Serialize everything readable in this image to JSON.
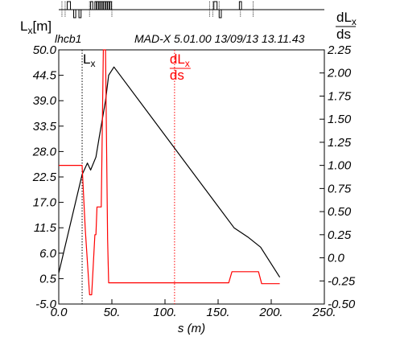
{
  "chart_data": {
    "type": "line",
    "header": {
      "left_text": "lhcb1",
      "right_text": "MAD-X 5.01.00   13/09/13 13.11.43"
    },
    "xlabel": "s (m)",
    "xlim": [
      0,
      250
    ],
    "x_ticks": [
      "0.0",
      "50.",
      "100.",
      "150.",
      "200.",
      "250."
    ],
    "y_left": {
      "label_main": "L",
      "label_sub": "x",
      "label_unit": "[m]",
      "ylim": [
        -5,
        50
      ],
      "ticks": [
        "-5.0",
        "0.5",
        "6.0",
        "11.5",
        "17.0",
        "22.5",
        "28.0",
        "33.5",
        "39.0",
        "44.5",
        "50.0"
      ]
    },
    "y_right": {
      "label_num": "dL",
      "label_sub": "x",
      "label_den": "ds",
      "ylim": [
        -0.5,
        2.25
      ],
      "ticks": [
        "-0.50",
        "-0.25",
        "0.0",
        "0.25",
        "0.50",
        "0.75",
        "1.00",
        "1.25",
        "1.50",
        "1.75",
        "2.00",
        "2.25"
      ]
    },
    "series": [
      {
        "name": "Lx",
        "axis": "left",
        "color": "#000000",
        "x": [
          0,
          22,
          27,
          30,
          35,
          38,
          44,
          47,
          52,
          165,
          178,
          190,
          208
        ],
        "y": [
          1.7,
          23.0,
          25.5,
          24.0,
          26.8,
          31.0,
          39.0,
          44.5,
          46.3,
          11.5,
          9.5,
          7.3,
          0.8
        ]
      },
      {
        "name": "dLx/ds",
        "axis": "right",
        "color": "#ff0000",
        "x": [
          0,
          22,
          25,
          29,
          31,
          34,
          35,
          36,
          40,
          42,
          44,
          46,
          47,
          50,
          51,
          160,
          163,
          175,
          185,
          188,
          191,
          208
        ],
        "y": [
          1.0,
          1.0,
          0.3,
          -0.4,
          -0.4,
          0.25,
          0.25,
          0.55,
          0.55,
          2.25,
          2.25,
          0.2,
          -0.27,
          -0.27,
          -0.27,
          -0.27,
          -0.15,
          -0.15,
          -0.15,
          -0.15,
          -0.28,
          -0.28
        ]
      }
    ],
    "markers": [
      {
        "label": "L",
        "label_sub": "x",
        "x": 22,
        "color": "#000000"
      },
      {
        "label": "dL",
        "label_sub": "x",
        "label_den": "ds",
        "x": 109,
        "color": "#ff0000"
      }
    ],
    "lattice": {
      "elements": [
        {
          "s": 8,
          "w": 3,
          "type": "up"
        },
        {
          "s": 14,
          "w": 2,
          "type": "down"
        },
        {
          "s": 19,
          "w": 2,
          "type": "down"
        },
        {
          "s": 30,
          "w": 2,
          "type": "up"
        },
        {
          "s": 34,
          "w": 1.5,
          "type": "up"
        },
        {
          "s": 36,
          "w": 1.5,
          "type": "up"
        },
        {
          "s": 38,
          "w": 1.5,
          "type": "up"
        },
        {
          "s": 40,
          "w": 1.5,
          "type": "up"
        },
        {
          "s": 42,
          "w": 1.5,
          "type": "up"
        },
        {
          "s": 44,
          "w": 1.5,
          "type": "up"
        },
        {
          "s": 46,
          "w": 1.5,
          "type": "up"
        },
        {
          "s": 48,
          "w": 1.5,
          "type": "up"
        },
        {
          "s": 146,
          "w": 3,
          "type": "up"
        },
        {
          "s": 151,
          "w": 2,
          "type": "down"
        },
        {
          "s": 170,
          "w": 2,
          "type": "up"
        }
      ],
      "dotted_at": [
        3,
        6,
        29,
        50,
        142,
        145,
        151,
        171,
        183
      ]
    }
  }
}
